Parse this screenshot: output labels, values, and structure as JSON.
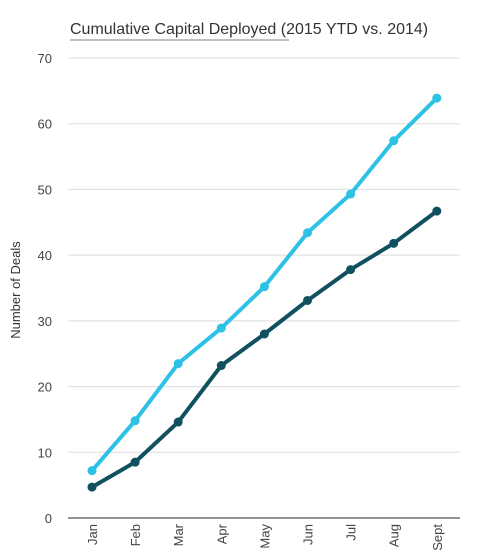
{
  "chart_data": {
    "type": "line",
    "title": "Cumulative Capital Deployed (2015 YTD vs. 2014)",
    "title_underlined_part": "Cumulative Capital Deployed",
    "title_rest": " (2015 YTD vs. 2014)",
    "xlabel": "",
    "ylabel": "Number of Deals",
    "categories": [
      "Jan",
      "Feb",
      "Mar",
      "Apr",
      "May",
      "Jun",
      "Jul",
      "Aug",
      "Sept"
    ],
    "ylim": [
      0,
      70
    ],
    "yticks": [
      0,
      10,
      20,
      30,
      40,
      50,
      60,
      70
    ],
    "grid": true,
    "legend": "none",
    "series": [
      {
        "values": [
          7.2,
          14.8,
          23.5,
          28.9,
          35.2,
          43.4,
          49.3,
          57.4,
          63.9
        ],
        "color": "#2ec1e6"
      },
      {
        "values": [
          4.7,
          8.5,
          14.6,
          23.2,
          28.0,
          33.1,
          37.8,
          41.8,
          46.7
        ],
        "color": "#10505f"
      }
    ]
  }
}
